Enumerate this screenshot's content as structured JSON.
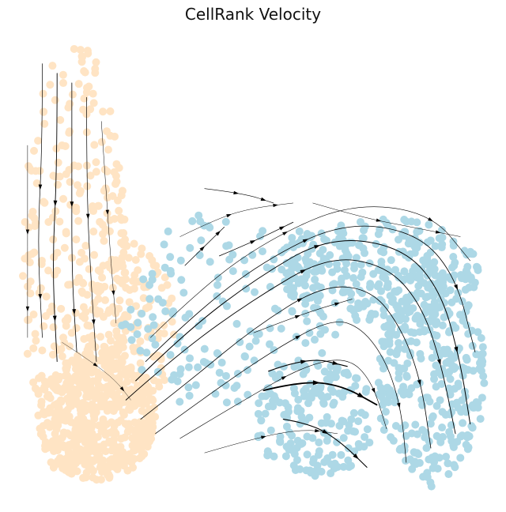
{
  "chart_data": {
    "type": "scatter",
    "title": "CellRank Velocity",
    "xlabel": "",
    "ylabel": "",
    "axes_visible": false,
    "grid": false,
    "legend": "none",
    "overlay": "velocity streamlines with arrowheads (black)",
    "xlim": [
      0,
      10
    ],
    "ylim": [
      0,
      10
    ],
    "series": [
      {
        "color": "#ffe4c4",
        "regions": [
          {
            "x": [
              0.3,
              2.4
            ],
            "y": [
              0.4,
              9.7
            ],
            "density": "high"
          },
          {
            "x": [
              0.6,
              3.0
            ],
            "y": [
              0.5,
              3.2
            ],
            "density": "very-high"
          },
          {
            "x": [
              1.6,
              3.4
            ],
            "y": [
              2.0,
              5.5
            ],
            "density": "medium"
          }
        ]
      },
      {
        "color": "#add8e6",
        "regions": [
          {
            "x": [
              2.3,
              7.0
            ],
            "y": [
              1.8,
              6.2
            ],
            "density": "medium"
          },
          {
            "x": [
              5.5,
              9.6
            ],
            "y": [
              3.8,
              6.0
            ],
            "density": "high"
          },
          {
            "x": [
              7.5,
              9.7
            ],
            "y": [
              0.4,
              5.0
            ],
            "density": "high"
          },
          {
            "x": [
              5.0,
              7.5
            ],
            "y": [
              0.6,
              3.0
            ],
            "density": "medium"
          }
        ]
      }
    ],
    "streamlines": [
      {
        "points": [
          [
            0.7,
            9.2
          ],
          [
            0.7,
            7.5
          ],
          [
            0.6,
            5.5
          ],
          [
            0.7,
            3.5
          ]
        ],
        "width": 0.7
      },
      {
        "points": [
          [
            1.0,
            9.0
          ],
          [
            1.0,
            7.0
          ],
          [
            0.9,
            5.0
          ],
          [
            1.0,
            3.0
          ]
        ],
        "width": 0.9
      },
      {
        "points": [
          [
            1.3,
            8.8
          ],
          [
            1.3,
            6.8
          ],
          [
            1.3,
            4.8
          ],
          [
            1.4,
            3.2
          ]
        ],
        "width": 0.8
      },
      {
        "points": [
          [
            1.6,
            8.5
          ],
          [
            1.6,
            6.5
          ],
          [
            1.7,
            4.5
          ],
          [
            1.8,
            3.0
          ]
        ],
        "width": 0.7
      },
      {
        "points": [
          [
            1.9,
            8.0
          ],
          [
            2.0,
            6.5
          ],
          [
            2.1,
            5.0
          ],
          [
            2.2,
            3.8
          ]
        ],
        "width": 0.5
      },
      {
        "points": [
          [
            0.4,
            7.5
          ],
          [
            0.4,
            5.5
          ],
          [
            0.4,
            3.5
          ]
        ],
        "width": 0.5
      },
      {
        "points": [
          [
            2.4,
            2.2
          ],
          [
            3.5,
            3.2
          ],
          [
            5.0,
            4.3
          ],
          [
            6.5,
            5.2
          ],
          [
            7.7,
            5.0
          ],
          [
            8.4,
            4.2
          ],
          [
            8.8,
            3.0
          ],
          [
            9.1,
            1.5
          ]
        ],
        "width": 0.9
      },
      {
        "points": [
          [
            2.6,
            2.6
          ],
          [
            3.6,
            3.6
          ],
          [
            5.0,
            4.7
          ],
          [
            6.5,
            5.6
          ],
          [
            8.0,
            5.4
          ],
          [
            8.8,
            4.5
          ],
          [
            9.2,
            3.0
          ],
          [
            9.4,
            1.7
          ]
        ],
        "width": 1.0
      },
      {
        "points": [
          [
            2.8,
            3.0
          ],
          [
            3.8,
            4.0
          ],
          [
            5.2,
            5.1
          ],
          [
            6.8,
            5.9
          ],
          [
            8.3,
            5.7
          ],
          [
            9.1,
            4.8
          ],
          [
            9.5,
            3.2
          ]
        ],
        "width": 0.8
      },
      {
        "points": [
          [
            2.9,
            3.5
          ],
          [
            4.0,
            4.6
          ],
          [
            5.4,
            5.6
          ],
          [
            7.0,
            6.3
          ],
          [
            8.6,
            6.1
          ],
          [
            9.4,
            5.1
          ]
        ],
        "width": 0.6
      },
      {
        "points": [
          [
            2.7,
            1.8
          ],
          [
            3.7,
            2.6
          ],
          [
            5.0,
            3.7
          ],
          [
            6.4,
            4.6
          ],
          [
            7.4,
            4.5
          ],
          [
            8.0,
            3.7
          ],
          [
            8.4,
            2.6
          ],
          [
            8.6,
            1.2
          ]
        ],
        "width": 0.8
      },
      {
        "points": [
          [
            3.0,
            1.5
          ],
          [
            4.2,
            2.4
          ],
          [
            5.5,
            3.3
          ],
          [
            6.6,
            3.9
          ],
          [
            7.2,
            3.7
          ],
          [
            7.7,
            3.0
          ],
          [
            8.0,
            2.0
          ],
          [
            8.1,
            0.9
          ]
        ],
        "width": 0.7
      },
      {
        "points": [
          [
            3.5,
            1.4
          ],
          [
            4.8,
            2.2
          ],
          [
            6.0,
            2.9
          ],
          [
            6.9,
            3.1
          ],
          [
            7.4,
            2.6
          ],
          [
            7.7,
            1.6
          ]
        ],
        "width": 0.6
      },
      {
        "points": [
          [
            5.2,
            2.4
          ],
          [
            6.0,
            2.6
          ],
          [
            6.8,
            2.5
          ],
          [
            7.5,
            2.1
          ]
        ],
        "width": 1.8
      },
      {
        "points": [
          [
            5.3,
            2.8
          ],
          [
            6.1,
            3.1
          ],
          [
            6.9,
            2.9
          ]
        ],
        "width": 1.2
      },
      {
        "points": [
          [
            5.6,
            1.8
          ],
          [
            6.2,
            1.7
          ],
          [
            6.8,
            1.3
          ],
          [
            7.3,
            0.8
          ]
        ],
        "width": 1.1
      },
      {
        "points": [
          [
            5.0,
            3.6
          ],
          [
            6.0,
            4.0
          ],
          [
            7.0,
            4.3
          ]
        ],
        "width": 0.6
      },
      {
        "points": [
          [
            3.5,
            5.6
          ],
          [
            4.3,
            6.0
          ],
          [
            5.0,
            6.2
          ],
          [
            5.8,
            6.3
          ]
        ],
        "width": 0.5
      },
      {
        "points": [
          [
            4.0,
            6.6
          ],
          [
            4.8,
            6.5
          ],
          [
            5.4,
            6.3
          ]
        ],
        "width": 0.6
      },
      {
        "points": [
          [
            4.3,
            5.2
          ],
          [
            5.0,
            5.5
          ],
          [
            5.8,
            5.9
          ]
        ],
        "width": 0.8
      },
      {
        "points": [
          [
            3.6,
            5.0
          ],
          [
            4.0,
            5.4
          ],
          [
            4.4,
            5.8
          ]
        ],
        "width": 0.7
      },
      {
        "points": [
          [
            6.2,
            6.3
          ],
          [
            7.2,
            6.0
          ],
          [
            8.2,
            5.8
          ],
          [
            9.2,
            5.6
          ]
        ],
        "width": 0.5
      },
      {
        "points": [
          [
            4.0,
            1.1
          ],
          [
            5.0,
            1.4
          ],
          [
            6.0,
            1.6
          ],
          [
            6.7,
            1.5
          ]
        ],
        "width": 0.5
      },
      {
        "points": [
          [
            1.1,
            3.4
          ],
          [
            1.7,
            3.0
          ],
          [
            2.2,
            2.6
          ],
          [
            2.5,
            2.2
          ]
        ],
        "width": 0.4
      }
    ]
  }
}
